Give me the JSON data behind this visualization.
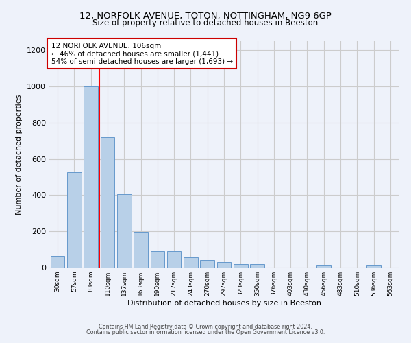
{
  "title1": "12, NORFOLK AVENUE, TOTON, NOTTINGHAM, NG9 6GP",
  "title2": "Size of property relative to detached houses in Beeston",
  "xlabel": "Distribution of detached houses by size in Beeston",
  "ylabel": "Number of detached properties",
  "categories": [
    "30sqm",
    "57sqm",
    "83sqm",
    "110sqm",
    "137sqm",
    "163sqm",
    "190sqm",
    "217sqm",
    "243sqm",
    "270sqm",
    "297sqm",
    "323sqm",
    "350sqm",
    "376sqm",
    "403sqm",
    "430sqm",
    "456sqm",
    "483sqm",
    "510sqm",
    "536sqm",
    "563sqm"
  ],
  "values": [
    65,
    525,
    1000,
    720,
    405,
    197,
    90,
    90,
    58,
    40,
    32,
    20,
    20,
    0,
    0,
    0,
    10,
    0,
    0,
    10,
    0
  ],
  "bar_color": "#b8d0e8",
  "bar_edge_color": "#6699cc",
  "grid_color": "#cccccc",
  "bg_color": "#eef2fa",
  "red_line_x": 2.5,
  "annotation_text": "12 NORFOLK AVENUE: 106sqm\n← 46% of detached houses are smaller (1,441)\n54% of semi-detached houses are larger (1,693) →",
  "annotation_box_color": "#ffffff",
  "annotation_box_edge_color": "#cc0000",
  "footnote1": "Contains HM Land Registry data © Crown copyright and database right 2024.",
  "footnote2": "Contains public sector information licensed under the Open Government Licence v3.0.",
  "ylim": [
    0,
    1250
  ],
  "yticks": [
    0,
    200,
    400,
    600,
    800,
    1000,
    1200
  ],
  "title1_fontsize": 9.5,
  "title2_fontsize": 8.5,
  "ylabel_fontsize": 8,
  "xlabel_fontsize": 8,
  "xtick_fontsize": 6.5,
  "ytick_fontsize": 8,
  "footnote_fontsize": 5.8
}
